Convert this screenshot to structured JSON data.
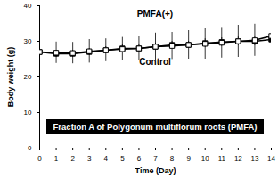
{
  "chart_data": {
    "type": "line",
    "x_label": "Time (Day)",
    "y_label": "Body weight (g)",
    "x": [
      0,
      1,
      2,
      3,
      4,
      5,
      6,
      7,
      8,
      9,
      10,
      11,
      12,
      13,
      14
    ],
    "xlim": [
      0,
      14
    ],
    "xticks": [
      0,
      1,
      2,
      3,
      4,
      5,
      6,
      7,
      8,
      9,
      10,
      11,
      12,
      13,
      14
    ],
    "ylim": [
      0,
      40
    ],
    "yticks": [
      0,
      10,
      20,
      30,
      40
    ],
    "grid": false,
    "series": [
      {
        "name": "PMFA(+)",
        "color": "#000000",
        "marker": "open square",
        "values": [
          27.0,
          26.8,
          26.7,
          27.2,
          27.5,
          27.8,
          28.0,
          28.5,
          28.7,
          29.0,
          29.3,
          29.6,
          30.0,
          30.3,
          31.5
        ],
        "errors": [
          3.2,
          3.0,
          3.0,
          3.3,
          3.2,
          3.3,
          3.5,
          3.8,
          3.8,
          4.0,
          4.3,
          4.3,
          4.5,
          4.5,
          4.7
        ]
      },
      {
        "name": "Control",
        "color": "#000000",
        "marker": "square",
        "values": [
          27.0,
          26.5,
          26.5,
          27.0,
          27.5,
          28.0,
          28.0,
          28.5,
          29.0,
          29.0,
          29.5,
          29.8,
          30.0,
          30.0,
          30.5
        ],
        "errors": [
          1.0,
          1.0,
          1.0,
          1.0,
          1.0,
          1.0,
          1.0,
          1.0,
          1.0,
          1.0,
          1.2,
          1.2,
          1.2,
          1.2,
          1.3
        ]
      }
    ],
    "annotations": [
      "Fraction A of Polygonum multiflorum roots (PMFA)"
    ]
  }
}
